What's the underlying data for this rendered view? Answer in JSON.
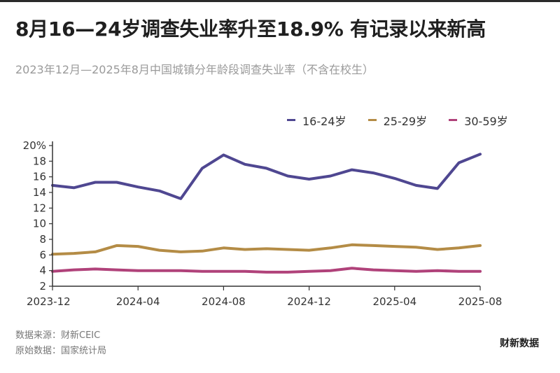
{
  "title": "8月16—24岁调查失业率升至18.9% 有记录以来新高",
  "subtitle": "2023年12月—2025年8月中国城镇分年龄段调查失业率（不含在校生）",
  "source_label": "数据来源：财新CEIC",
  "origin_label": "原始数据：国家统计局",
  "brand": "财新数据",
  "colors": {
    "series_16_24": "#4f4791",
    "series_25_29": "#b48c46",
    "series_30_59": "#b0427a",
    "axis": "#333333"
  },
  "chart_data": {
    "type": "line",
    "x": [
      "2023-12",
      "2024-01",
      "2024-02",
      "2024-03",
      "2024-04",
      "2024-05",
      "2024-06",
      "2024-07",
      "2024-08",
      "2024-09",
      "2024-10",
      "2024-11",
      "2024-12",
      "2025-01",
      "2025-02",
      "2025-03",
      "2025-04",
      "2025-05",
      "2025-06",
      "2025-07",
      "2025-08"
    ],
    "x_tick_labels": [
      "2023-12",
      "2024-04",
      "2024-08",
      "2024-12",
      "2025-04",
      "2025-08"
    ],
    "y_tick_labels": [
      "20%",
      "18",
      "16",
      "14",
      "12",
      "10",
      "8",
      "6",
      "4",
      "2"
    ],
    "ylim": [
      2,
      20
    ],
    "legend_position": "top-right",
    "series": [
      {
        "name": "16-24岁",
        "values": [
          14.9,
          14.6,
          15.3,
          15.3,
          14.7,
          14.2,
          13.2,
          17.1,
          18.8,
          17.6,
          17.1,
          16.1,
          15.7,
          16.1,
          16.9,
          16.5,
          15.8,
          14.9,
          14.5,
          17.8,
          18.9
        ]
      },
      {
        "name": "25-29岁",
        "values": [
          6.1,
          6.2,
          6.4,
          7.2,
          7.1,
          6.6,
          6.4,
          6.5,
          6.9,
          6.7,
          6.8,
          6.7,
          6.6,
          6.9,
          7.3,
          7.2,
          7.1,
          7.0,
          6.7,
          6.9,
          7.2
        ]
      },
      {
        "name": "30-59岁",
        "values": [
          3.9,
          4.1,
          4.2,
          4.1,
          4.0,
          4.0,
          4.0,
          3.9,
          3.9,
          3.9,
          3.8,
          3.8,
          3.9,
          4.0,
          4.3,
          4.1,
          4.0,
          3.9,
          4.0,
          3.9,
          3.9
        ]
      }
    ]
  }
}
